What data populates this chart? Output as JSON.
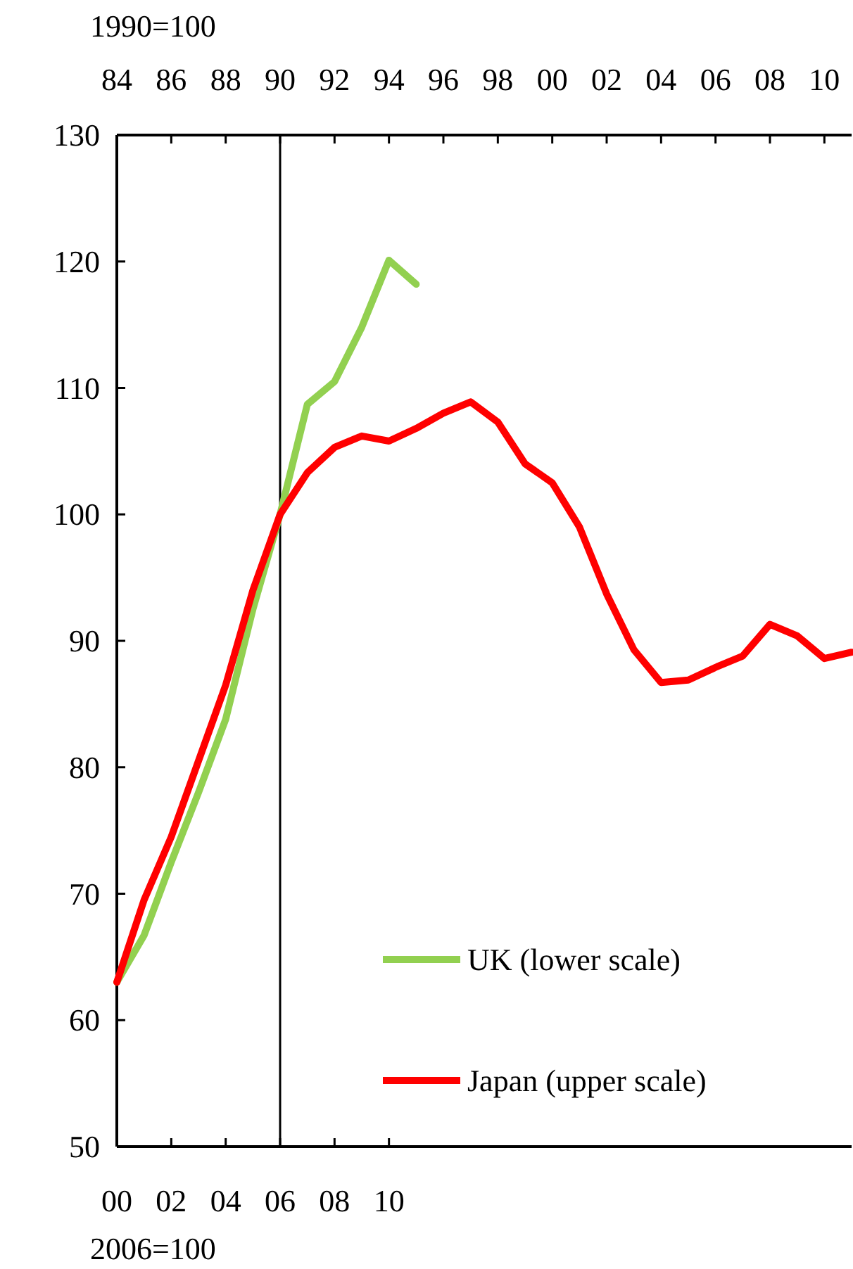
{
  "chart_data": {
    "type": "line",
    "xlabel": "2006=100",
    "x2label": "1990=100",
    "xlim": [
      2000,
      2027
    ],
    "xticks": [
      {
        "value": 2000,
        "label": "00"
      },
      {
        "value": 2002,
        "label": "02"
      },
      {
        "value": 2004,
        "label": "04"
      },
      {
        "value": 2006,
        "label": "06"
      },
      {
        "value": 2008,
        "label": "08"
      },
      {
        "value": 2010,
        "label": "10"
      }
    ],
    "x2lim": [
      1984,
      2011
    ],
    "x2ticks": [
      {
        "value": 1984,
        "label": "84"
      },
      {
        "value": 1986,
        "label": "86"
      },
      {
        "value": 1988,
        "label": "88"
      },
      {
        "value": 1990,
        "label": "90"
      },
      {
        "value": 1992,
        "label": "92"
      },
      {
        "value": 1994,
        "label": "94"
      },
      {
        "value": 1996,
        "label": "96"
      },
      {
        "value": 1998,
        "label": "98"
      },
      {
        "value": 2000,
        "label": "00"
      },
      {
        "value": 2002,
        "label": "02"
      },
      {
        "value": 2004,
        "label": "04"
      },
      {
        "value": 2006,
        "label": "06"
      },
      {
        "value": 2008,
        "label": "08"
      },
      {
        "value": 2010,
        "label": "10"
      }
    ],
    "ylim": [
      50,
      130
    ],
    "yticks": [
      50,
      60,
      70,
      80,
      90,
      100,
      110,
      120,
      130
    ],
    "series": [
      {
        "name": "UK (lower scale)",
        "color": "#92d050",
        "x": [
          2000,
          2001,
          2002,
          2003,
          2004,
          2005,
          2006,
          2007,
          2008,
          2009,
          2010,
          2011
        ],
        "values": [
          63,
          66.7,
          72.5,
          78,
          83.8,
          92.5,
          100,
          108.7,
          110.5,
          114.8,
          120.1,
          118.2
        ]
      },
      {
        "name": "Japan (upper scale)",
        "color": "#ff0000",
        "axis": "x2",
        "x": [
          1984,
          1985,
          1986,
          1987,
          1988,
          1989,
          1990,
          1991,
          1992,
          1993,
          1994,
          1995,
          1996,
          1997,
          1998,
          1999,
          2000,
          2001,
          2002,
          2003,
          2004,
          2005,
          2006,
          2007,
          2008,
          2009,
          2010,
          2011
        ],
        "values": [
          63,
          69.5,
          74.5,
          80.5,
          86.5,
          94,
          100,
          103.3,
          105.3,
          106.2,
          105.8,
          106.8,
          108,
          108.9,
          107.3,
          104,
          102.5,
          99,
          93.7,
          89.3,
          86.7,
          86.9,
          87.9,
          88.8,
          91.3,
          90.4,
          88.6,
          89.1
        ]
      }
    ],
    "ref_lines": [
      {
        "axis": "x",
        "value": 2006,
        "color": "#000000"
      }
    ],
    "legend": "bottom right",
    "grid": false,
    "marker": "none",
    "line_style": "solid"
  }
}
